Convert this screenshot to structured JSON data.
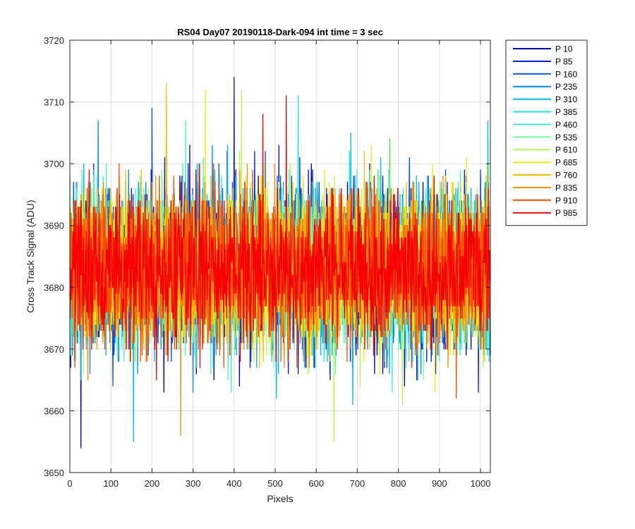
{
  "chart_data": {
    "type": "line",
    "title": "RS04 Day07 20190118-Dark-094 int time = 3 sec",
    "xlabel": "Pixels",
    "ylabel": "Cross Track Signal (ADU)",
    "xlim": [
      0,
      1024
    ],
    "ylim": [
      3650,
      3720
    ],
    "xticks": [
      0,
      100,
      200,
      300,
      400,
      500,
      600,
      700,
      800,
      900,
      1000
    ],
    "yticks": [
      3650,
      3660,
      3670,
      3680,
      3690,
      3700,
      3710,
      3720
    ],
    "grid": true,
    "legend_position": "outside-right",
    "noise_mean": 3683,
    "noise_sd": 6,
    "series": [
      {
        "name": "P 10",
        "color": "#0000a8"
      },
      {
        "name": "P 85",
        "color": "#0018d8"
      },
      {
        "name": "P 160",
        "color": "#0050f0"
      },
      {
        "name": "P 235",
        "color": "#0088f8"
      },
      {
        "name": "P 310",
        "color": "#00b8f8"
      },
      {
        "name": "P 385",
        "color": "#18e8f0"
      },
      {
        "name": "P 460",
        "color": "#48f0d0"
      },
      {
        "name": "P 535",
        "color": "#80f8a0"
      },
      {
        "name": "P 610",
        "color": "#b8f850"
      },
      {
        "name": "P 685",
        "color": "#f0f000"
      },
      {
        "name": "P 760",
        "color": "#f8c000"
      },
      {
        "name": "P 835",
        "color": "#f89000"
      },
      {
        "name": "P 910",
        "color": "#f85000"
      },
      {
        "name": "P 985",
        "color": "#f80000"
      }
    ],
    "notable_extremes": [
      {
        "series": "P 10",
        "x": 27,
        "y": 3654
      },
      {
        "series": "P 85",
        "x": 400,
        "y": 3714
      },
      {
        "series": "P 760",
        "x": 235,
        "y": 3713
      },
      {
        "series": "P 685",
        "x": 330,
        "y": 3712
      },
      {
        "series": "P 610",
        "x": 418,
        "y": 3712
      },
      {
        "series": "P 985",
        "x": 527,
        "y": 3711
      },
      {
        "series": "P 385",
        "x": 556,
        "y": 3711
      },
      {
        "series": "P 835",
        "x": 270,
        "y": 3656
      },
      {
        "series": "P 310",
        "x": 155,
        "y": 3655
      },
      {
        "series": "P 610",
        "x": 643,
        "y": 3655
      },
      {
        "series": "P 160",
        "x": 200,
        "y": 3709
      },
      {
        "series": "P 985",
        "x": 470,
        "y": 3708
      }
    ]
  }
}
